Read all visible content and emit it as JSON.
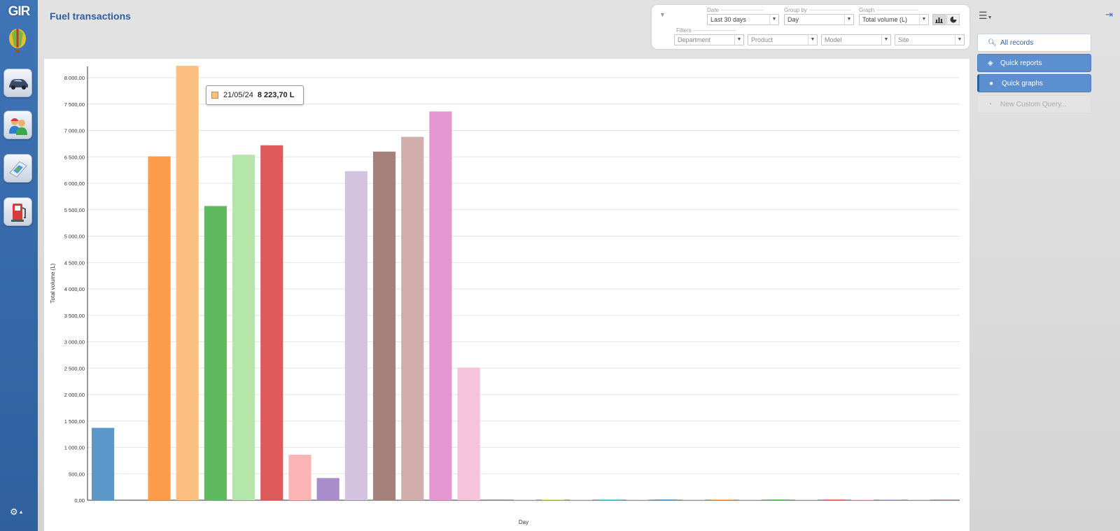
{
  "app": {
    "logo": "GIR",
    "title": "Fuel transactions"
  },
  "filters": {
    "date_label": "Date",
    "date_value": "Last 30 days",
    "group_label": "Group by",
    "group_value": "Day",
    "graph_label": "Graph",
    "graph_value": "Total volume (L)",
    "filters_label": "Filters",
    "department_placeholder": "Department",
    "product_placeholder": "Product",
    "model_placeholder": "Model",
    "site_placeholder": "Site"
  },
  "side_menu": {
    "all_records": "All records",
    "quick_reports": "Quick reports",
    "quick_graphs": "Quick graphs",
    "new_custom_query": "New Custom Query..."
  },
  "tooltip": {
    "date": "21/05/24",
    "value": "8 223,70 L",
    "color": "#fdbf80"
  },
  "chart_data": {
    "type": "bar",
    "xlabel": "Day",
    "ylabel": "Total volume (L)",
    "ylim": [
      0,
      8200
    ],
    "yticks": [
      "0,00",
      "500,00",
      "1 000,00",
      "1 500,00",
      "2 000,00",
      "2 500,00",
      "3 000,00",
      "3 500,00",
      "4 000,00",
      "4 500,00",
      "5 000,00",
      "5 500,00",
      "6 000,00",
      "6 500,00",
      "7 000,00",
      "7 500,00",
      "8 000,00"
    ],
    "grid": true,
    "values": [
      1370,
      0,
      6510,
      8223.7,
      5570,
      6540,
      6720,
      860,
      420,
      6230,
      6600,
      6880,
      7360,
      2510,
      15,
      5,
      10,
      5,
      12,
      5,
      15,
      5,
      12,
      5,
      15,
      5,
      12,
      8,
      10,
      5,
      12
    ],
    "colors": [
      "#5b97c8",
      "#aec7e8",
      "#fd9c4b",
      "#fdbf80",
      "#5fb95f",
      "#b3e6a8",
      "#dc5a5a",
      "#fdb4b4",
      "#a98ccb",
      "#d4c3e0",
      "#a6807a",
      "#d1aeab",
      "#e597d2",
      "#f6c4da",
      "#999999",
      "#cccccc",
      "#cdcd48",
      "#dcdc9c",
      "#3fbacd",
      "#a8dde8",
      "#5b97c8",
      "#aec7e8",
      "#fd9c4b",
      "#fdbf80",
      "#5fb95f",
      "#b3e6a8",
      "#dc5a5a",
      "#fdb4b4",
      "#a98ccb",
      "#d4c3e0",
      "#a6807a"
    ]
  }
}
